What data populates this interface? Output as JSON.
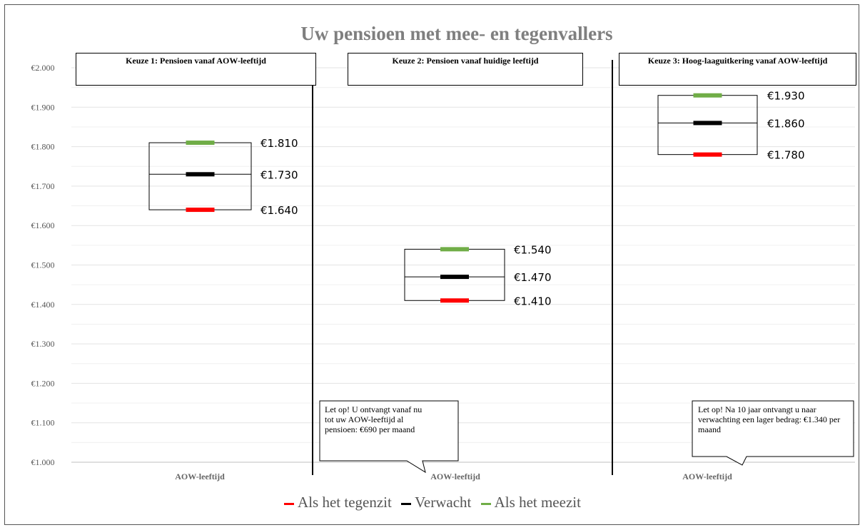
{
  "chart_data": {
    "type": "range",
    "title": "Uw pensioen met mee- en tegenvallers",
    "ylim": [
      1000,
      2000
    ],
    "ytick_values": [
      1000,
      1100,
      1200,
      1300,
      1400,
      1500,
      1600,
      1700,
      1800,
      1900,
      2000
    ],
    "ytick_labels": [
      "€1.000",
      "€1.100",
      "€1.200",
      "€1.300",
      "€1.400",
      "€1.500",
      "€1.600",
      "€1.700",
      "€1.800",
      "€1.900",
      "€2.000"
    ],
    "grid": true,
    "legend_position": "bottom",
    "series": [
      {
        "name": "Als het tegenzit",
        "color": "#ff0000"
      },
      {
        "name": "Verwacht",
        "color": "#000000"
      },
      {
        "name": "Als het meezit",
        "color": "#70ad47"
      }
    ],
    "panels": [
      {
        "heading": "Keuze 1: Pensioen vanaf AOW-leeftijd",
        "xlabel": "AOW-leeftijd",
        "values": {
          "tegenzit": 1640,
          "verwacht": 1730,
          "meezit": 1810
        },
        "labels": {
          "tegenzit": "€1.640",
          "verwacht": "€1.730",
          "meezit": "€1.810"
        },
        "note": ""
      },
      {
        "heading": "Keuze 2: Pensioen vanaf huidige leeftijd",
        "xlabel": "AOW-leeftijd",
        "values": {
          "tegenzit": 1410,
          "verwacht": 1470,
          "meezit": 1540
        },
        "labels": {
          "tegenzit": "€1.410",
          "verwacht": "€1.470",
          "meezit": "€1.540"
        },
        "note": "Let op! U ontvangt vanaf nu tot uw AOW-leeftijd al pensioen: €690 per maand"
      },
      {
        "heading": "Keuze 3: Hoog-laaguitkering vanaf AOW-leeftijd",
        "xlabel": "AOW-leeftijd",
        "values": {
          "tegenzit": 1780,
          "verwacht": 1860,
          "meezit": 1930
        },
        "labels": {
          "tegenzit": "€1.780",
          "verwacht": "€1.860",
          "meezit": "€1.930"
        },
        "note": "Let op! Na 10 jaar ontvangt u naar verwachting een lager bedrag: €1.340 per maand"
      }
    ]
  }
}
